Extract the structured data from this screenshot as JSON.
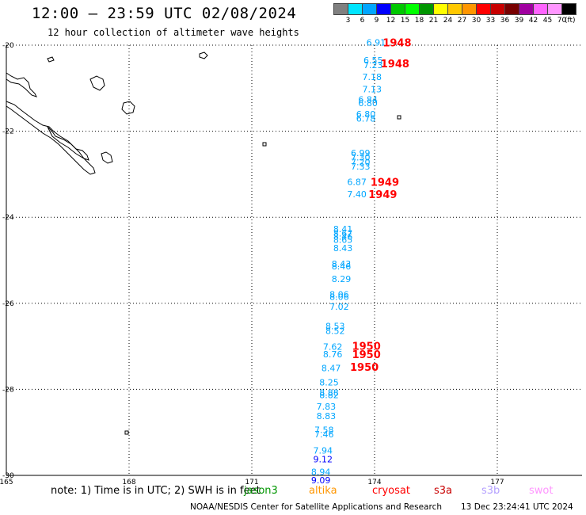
{
  "title": "12:00 – 23:59 UTC 02/08/2024",
  "subtitle": "12 hour collection of altimeter wave heights",
  "scale": {
    "unit": "(ft)",
    "labels": [
      "3",
      "6",
      "9",
      "12",
      "15",
      "18",
      "21",
      "24",
      "27",
      "30",
      "33",
      "36",
      "39",
      "42",
      "45",
      "70"
    ],
    "colors": [
      "#808080",
      "#00e5ff",
      "#00a6ff",
      "#0000ff",
      "#00c800",
      "#00ff00",
      "#009600",
      "#ffff00",
      "#ffc800",
      "#ff9600",
      "#ff0000",
      "#c80000",
      "#780000",
      "#a000a0",
      "#ff64ff",
      "#ff96ff",
      "#000000"
    ]
  },
  "axes": {
    "lon_labels": [
      "165",
      "168",
      "171",
      "174",
      "177"
    ],
    "lat_labels": [
      "-20",
      "-22",
      "-24",
      "-26",
      "-28",
      "-30"
    ]
  },
  "observations": [
    {
      "lon": 173.8,
      "lat": -19.94,
      "value": "6.91",
      "color": "#00a6ff"
    },
    {
      "lon": 173.73,
      "lat": -20.35,
      "value": "6.55",
      "color": "#00a6ff"
    },
    {
      "lon": 173.73,
      "lat": -20.46,
      "value": "7.23",
      "color": "#00a6ff"
    },
    {
      "lon": 173.7,
      "lat": -20.74,
      "value": "7.18",
      "color": "#00a6ff"
    },
    {
      "lon": 173.7,
      "lat": -21.02,
      "value": "7.13",
      "color": "#00a6ff"
    },
    {
      "lon": 173.6,
      "lat": -21.26,
      "value": "6.84",
      "color": "#00a6ff"
    },
    {
      "lon": 173.6,
      "lat": -21.34,
      "value": "6.80",
      "color": "#00a6ff"
    },
    {
      "lon": 173.55,
      "lat": -21.6,
      "value": "6.80",
      "color": "#00a6ff"
    },
    {
      "lon": 173.55,
      "lat": -21.7,
      "value": "6.78",
      "color": "#00a6ff"
    },
    {
      "lon": 173.42,
      "lat": -22.5,
      "value": "6.99",
      "color": "#00a6ff"
    },
    {
      "lon": 173.42,
      "lat": -22.61,
      "value": "7.30",
      "color": "#00a6ff"
    },
    {
      "lon": 173.42,
      "lat": -22.72,
      "value": "7.20",
      "color": "#00a6ff"
    },
    {
      "lon": 173.42,
      "lat": -22.82,
      "value": "7.33",
      "color": "#00a6ff"
    },
    {
      "lon": 173.33,
      "lat": -23.18,
      "value": "6.87",
      "color": "#00a6ff"
    },
    {
      "lon": 173.33,
      "lat": -23.46,
      "value": "7.40",
      "color": "#00a6ff"
    },
    {
      "lon": 172.99,
      "lat": -24.27,
      "value": "8.41",
      "color": "#00a6ff"
    },
    {
      "lon": 172.99,
      "lat": -24.37,
      "value": "8.67",
      "color": "#00a6ff"
    },
    {
      "lon": 172.99,
      "lat": -24.45,
      "value": "8.46",
      "color": "#00a6ff"
    },
    {
      "lon": 172.99,
      "lat": -24.52,
      "value": "8.65",
      "color": "#00a6ff"
    },
    {
      "lon": 172.99,
      "lat": -24.71,
      "value": "8.43",
      "color": "#00a6ff"
    },
    {
      "lon": 172.95,
      "lat": -25.08,
      "value": "8.43",
      "color": "#00a6ff"
    },
    {
      "lon": 172.95,
      "lat": -25.14,
      "value": "8.46",
      "color": "#00a6ff"
    },
    {
      "lon": 172.95,
      "lat": -25.43,
      "value": "8.29",
      "color": "#00a6ff"
    },
    {
      "lon": 172.9,
      "lat": -25.79,
      "value": "8.06",
      "color": "#00a6ff"
    },
    {
      "lon": 172.9,
      "lat": -25.85,
      "value": "8.06",
      "color": "#00a6ff"
    },
    {
      "lon": 172.9,
      "lat": -26.08,
      "value": "7.02",
      "color": "#00a6ff"
    },
    {
      "lon": 172.8,
      "lat": -26.53,
      "value": "8.53",
      "color": "#00a6ff"
    },
    {
      "lon": 172.8,
      "lat": -26.64,
      "value": "8.52",
      "color": "#00a6ff"
    },
    {
      "lon": 172.74,
      "lat": -27.01,
      "value": "7.62",
      "color": "#00a6ff"
    },
    {
      "lon": 172.74,
      "lat": -27.18,
      "value": "8.76",
      "color": "#00a6ff"
    },
    {
      "lon": 172.7,
      "lat": -27.5,
      "value": "8.47",
      "color": "#00a6ff"
    },
    {
      "lon": 172.65,
      "lat": -27.84,
      "value": "8.25",
      "color": "#00a6ff"
    },
    {
      "lon": 172.65,
      "lat": -28.08,
      "value": "8.88",
      "color": "#00a6ff"
    },
    {
      "lon": 172.65,
      "lat": -28.13,
      "value": "8.82",
      "color": "#00a6ff"
    },
    {
      "lon": 172.58,
      "lat": -28.4,
      "value": "7.83",
      "color": "#00a6ff"
    },
    {
      "lon": 172.58,
      "lat": -28.62,
      "value": "8.83",
      "color": "#00a6ff"
    },
    {
      "lon": 172.53,
      "lat": -28.94,
      "value": "7.58",
      "color": "#00a6ff"
    },
    {
      "lon": 172.53,
      "lat": -29.04,
      "value": "7.46",
      "color": "#00a6ff"
    },
    {
      "lon": 172.5,
      "lat": -29.42,
      "value": "7.94",
      "color": "#00a6ff"
    },
    {
      "lon": 172.5,
      "lat": -29.62,
      "value": "9.12",
      "color": "#0000ff"
    },
    {
      "lon": 172.45,
      "lat": -29.92,
      "value": "8.94",
      "color": "#00a6ff"
    },
    {
      "lon": 172.45,
      "lat": -30.11,
      "value": "9.09",
      "color": "#0000ff"
    }
  ],
  "time_tags": [
    {
      "lon": 174.2,
      "lat": -19.94,
      "value": "1948",
      "color": "#ff0000"
    },
    {
      "lon": 174.15,
      "lat": -20.42,
      "value": "1948",
      "color": "#ff0000"
    },
    {
      "lon": 173.9,
      "lat": -23.18,
      "value": "1949",
      "color": "#ff0000"
    },
    {
      "lon": 173.85,
      "lat": -23.46,
      "value": "1949",
      "color": "#ff0000"
    },
    {
      "lon": 173.45,
      "lat": -26.99,
      "value": "1950",
      "color": "#ff0000"
    },
    {
      "lon": 173.45,
      "lat": -27.18,
      "value": "1950",
      "color": "#ff0000"
    },
    {
      "lon": 173.4,
      "lat": -27.48,
      "value": "1950",
      "color": "#ff0000"
    }
  ],
  "note": "note: 1) Time is in UTC; 2) SWH is in feet",
  "satellites": [
    {
      "name": "jason3",
      "color": "#009600"
    },
    {
      "name": "altika",
      "color": "#ff9600"
    },
    {
      "name": "cryosat",
      "color": "#ff0000"
    },
    {
      "name": "s3a",
      "color": "#c80000"
    },
    {
      "name": "s3b",
      "color": "#b4a0ff"
    },
    {
      "name": "swot",
      "color": "#ff96ff"
    }
  ],
  "footer": "NOAA/NESDIS Center for Satellite Applications and Research",
  "footer_time": "13 Dec 23:24:41 UTC 2024"
}
